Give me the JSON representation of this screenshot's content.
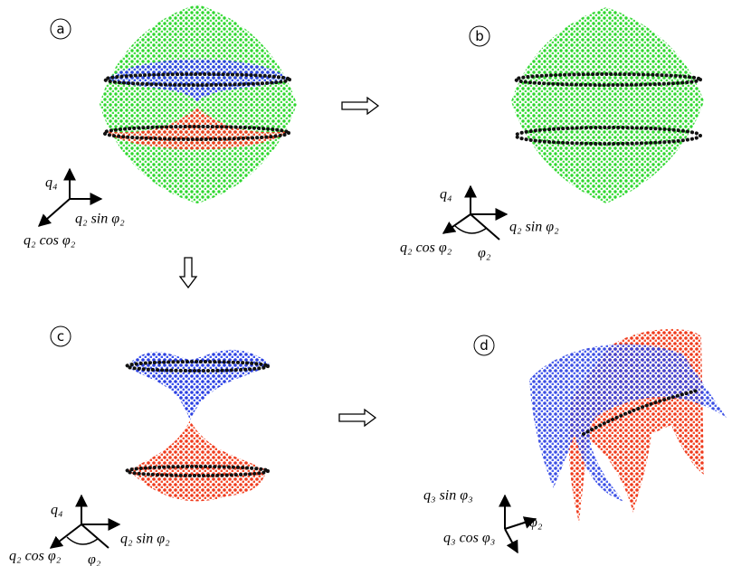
{
  "panels": [
    {
      "label": "a",
      "axes": [
        "q₄",
        "q₂ sin φ₂",
        "q₂ cos φ₂"
      ]
    },
    {
      "label": "b",
      "axes": [
        "q₄",
        "q₂ sin φ₂",
        "q₂ cos φ₂",
        "φ₂"
      ]
    },
    {
      "label": "c",
      "axes": [
        "q₄",
        "q₂ sin φ₂",
        "q₂ cos φ₂",
        "φ₂"
      ]
    },
    {
      "label": "d",
      "axes": [
        "q₃ sin φ₃",
        "q₃ cos φ₃",
        "φ₂"
      ]
    }
  ]
}
